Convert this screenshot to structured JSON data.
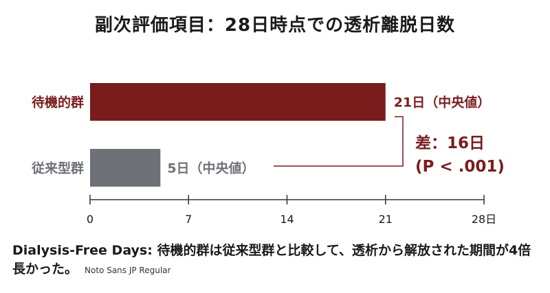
{
  "title": "副次評価項目：28日時点での透析離脱日数",
  "colors": {
    "standby": "#7a1c1c",
    "conventional": "#6e7178",
    "axis": "#333333",
    "text": "#1a1a1a"
  },
  "chart_data": {
    "type": "bar",
    "orientation": "horizontal",
    "categories": [
      "待機的群",
      "従来型群"
    ],
    "values": [
      21,
      5
    ],
    "data_labels": [
      "21日（中央値）",
      "5日（中央値）"
    ],
    "xlim": [
      0,
      28
    ],
    "x_ticks": [
      0,
      7,
      14,
      21,
      28
    ],
    "x_tick_labels": [
      "0",
      "7",
      "14",
      "21",
      "28日"
    ],
    "grid": false,
    "annotation": {
      "line1": "差：16日",
      "line2": "(P < .001)"
    }
  },
  "footer": {
    "text": "Dialysis-Free Days: 待機的群は従来型群と比較して、透析から解放された期間が4倍長かった。",
    "note": "Noto Sans JP Regular"
  }
}
